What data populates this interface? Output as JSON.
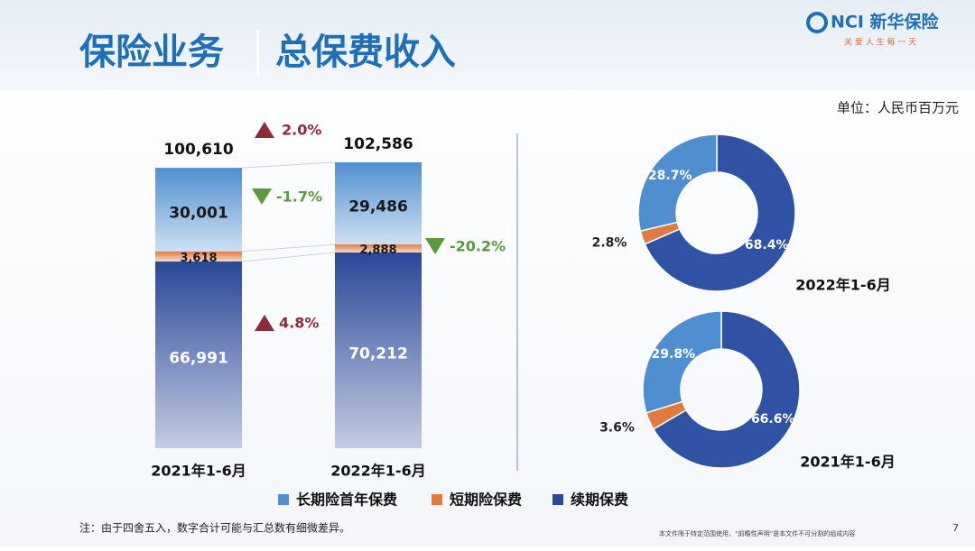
{
  "header": {
    "title": "保险业务",
    "subtitle": "总保费收入",
    "logo": "NCI 新华保险",
    "slogan": "关 爱 人 生 每 一 天"
  },
  "unit": "单位：人民币百万元",
  "chart_data": [
    {
      "type": "bar",
      "stacked": true,
      "categories": [
        "2021年1-6月",
        "2022年1-6月"
      ],
      "series": [
        {
          "name": "长期险首年保费",
          "color": "#4f8fd0",
          "values": [
            30001,
            29486
          ],
          "value_labels": [
            "30,001",
            "29,486"
          ],
          "change": {
            "value": -1.7,
            "label": "-1.7%"
          }
        },
        {
          "name": "短期险保费",
          "color": "#e07a3f",
          "values": [
            3618,
            2888
          ],
          "value_labels": [
            "3,618",
            "2,888"
          ],
          "change": {
            "value": -20.2,
            "label": "-20.2%"
          }
        },
        {
          "name": "续期保费",
          "color": "#2a4798",
          "values": [
            66991,
            70212
          ],
          "value_labels": [
            "66,991",
            "70,212"
          ],
          "change": {
            "value": 4.8,
            "label": "4.8%"
          }
        }
      ],
      "totals": [
        100610,
        102586
      ],
      "total_labels": [
        "100,610",
        "102,586"
      ],
      "total_change": {
        "value": 2.0,
        "label": "2.0%"
      }
    },
    {
      "type": "pie",
      "donut": true,
      "title": "2022年1-6月",
      "values": [
        68.4,
        2.8,
        28.7
      ],
      "value_labels": [
        "68.4%",
        "2.8%",
        "28.7%"
      ],
      "colors": [
        "#2f52a4",
        "#e07a3f",
        "#4f8fd0"
      ]
    },
    {
      "type": "pie",
      "donut": true,
      "title": "2021年1-6月",
      "values": [
        66.6,
        3.6,
        29.8
      ],
      "value_labels": [
        "66.6%",
        "3.6%",
        "29.8%"
      ],
      "colors": [
        "#2f52a4",
        "#e07a3f",
        "#4f8fd0"
      ]
    }
  ],
  "footer": {
    "note": "注：由于四舍五入，数字合计可能与汇总数有细微差异。",
    "disclaimer": "本文件限于特定范围使用，“前瞻性声明”是本文件不可分割的组成内容",
    "page": 7
  }
}
